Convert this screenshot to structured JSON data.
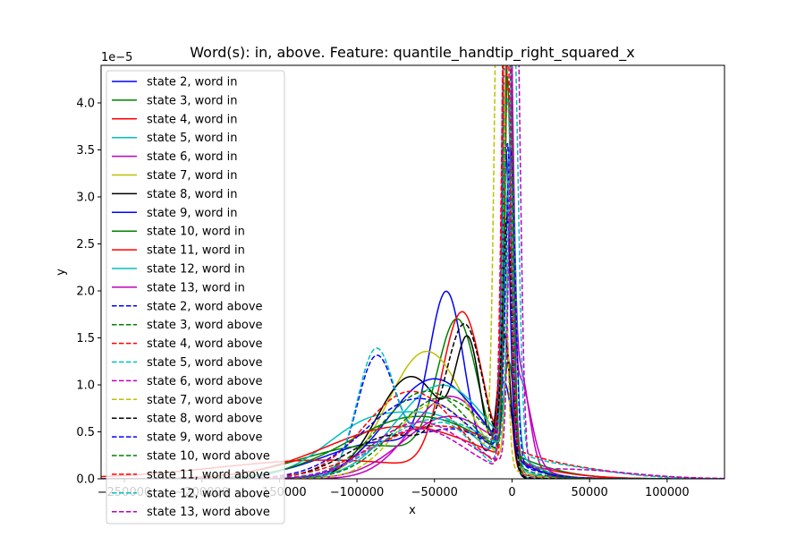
{
  "chart_data": {
    "type": "line",
    "title": "Word(s): in, above. Feature: quantile_handtip_right_squared_x",
    "xlabel": "x",
    "ylabel": "y",
    "y_offset_text": "1e−5",
    "xlim": [
      -265000,
      137000
    ],
    "ylim": [
      0,
      4.4
    ],
    "x_ticks": [
      -250000,
      -200000,
      -150000,
      -100000,
      -50000,
      0,
      50000,
      100000
    ],
    "x_tick_labels": [
      "−250000",
      "−200000",
      "−150000",
      "−100000",
      "−50000",
      "0",
      "50000",
      "100000"
    ],
    "y_ticks": [
      0,
      0.5,
      1.0,
      1.5,
      2.0,
      2.5,
      3.0,
      3.5,
      4.0
    ],
    "y_tick_labels": [
      "0.0",
      "0.5",
      "1.0",
      "1.5",
      "2.0",
      "2.5",
      "3.0",
      "3.5",
      "4.0"
    ],
    "legend_placement": "upper-left",
    "series": [
      {
        "name": "state 2, word in",
        "color": "#0000ff",
        "dash": "solid",
        "components": [
          {
            "m": -42000,
            "s": 11000,
            "a": 0.48
          },
          {
            "m": -5000,
            "s": 5000,
            "a": 0.12
          },
          {
            "m": -80000,
            "s": 40000,
            "a": 0.4
          }
        ]
      },
      {
        "name": "state 3, word in",
        "color": "#008000",
        "dash": "solid",
        "components": [
          {
            "m": -35000,
            "s": 13000,
            "a": 0.5
          },
          {
            "m": -2000,
            "s": 3500,
            "a": 0.1
          },
          {
            "m": -90000,
            "s": 45000,
            "a": 0.4
          }
        ]
      },
      {
        "name": "state 4, word in",
        "color": "#ff0000",
        "dash": "solid",
        "components": [
          {
            "m": -32000,
            "s": 13000,
            "a": 0.55
          },
          {
            "m": -4000,
            "s": 3000,
            "a": 0.1
          },
          {
            "m": -120000,
            "s": 70000,
            "a": 0.35
          }
        ]
      },
      {
        "name": "state 5, word in",
        "color": "#00bfbf",
        "dash": "solid",
        "components": [
          {
            "m": -3000,
            "s": 3500,
            "a": 0.25
          },
          {
            "m": -90000,
            "s": 30000,
            "a": 0.45
          },
          {
            "m": -40000,
            "s": 25000,
            "a": 0.3
          }
        ]
      },
      {
        "name": "state 6, word in",
        "color": "#bf00bf",
        "dash": "solid",
        "components": [
          {
            "m": -2000,
            "s": 2500,
            "a": 0.3
          },
          {
            "m": -40000,
            "s": 25000,
            "a": 0.55
          },
          {
            "m": 5000,
            "s": 6000,
            "a": 0.15
          }
        ]
      },
      {
        "name": "state 7, word in",
        "color": "#bfbf00",
        "dash": "solid",
        "components": [
          {
            "m": -1000,
            "s": 2500,
            "a": 0.15
          },
          {
            "m": -55000,
            "s": 25000,
            "a": 0.85
          }
        ]
      },
      {
        "name": "state 8, word in",
        "color": "#000000",
        "dash": "solid",
        "components": [
          {
            "m": -5000,
            "s": 4000,
            "a": 0.15
          },
          {
            "m": -65000,
            "s": 22000,
            "a": 0.6
          },
          {
            "m": -28000,
            "s": 8000,
            "a": 0.25
          }
        ]
      },
      {
        "name": "state 9, word in",
        "color": "#0000ff",
        "dash": "solid",
        "components": [
          {
            "m": -4000,
            "s": 2500,
            "a": 0.2
          },
          {
            "m": -50000,
            "s": 30000,
            "a": 0.8
          }
        ]
      },
      {
        "name": "state 10, word in",
        "color": "#008000",
        "dash": "solid",
        "components": [
          {
            "m": -3000,
            "s": 2500,
            "a": 0.25
          },
          {
            "m": -60000,
            "s": 45000,
            "a": 0.75
          }
        ]
      },
      {
        "name": "state 11, word in",
        "color": "#ff0000",
        "dash": "solid",
        "components": [
          {
            "m": -2000,
            "s": 2500,
            "a": 0.3
          },
          {
            "m": -70000,
            "s": 50000,
            "a": 0.7
          }
        ]
      },
      {
        "name": "state 12, word in",
        "color": "#00bfbf",
        "dash": "solid",
        "components": [
          {
            "m": -1000,
            "s": 3000,
            "a": 0.25
          },
          {
            "m": -45000,
            "s": 30000,
            "a": 0.75
          }
        ]
      },
      {
        "name": "state 13, word in",
        "color": "#bf00bf",
        "dash": "solid",
        "components": [
          {
            "m": -3000,
            "s": 2500,
            "a": 0.35
          },
          {
            "m": 5000,
            "s": 7000,
            "a": 0.15
          },
          {
            "m": -40000,
            "s": 30000,
            "a": 0.5
          }
        ]
      },
      {
        "name": "state 2, word above",
        "color": "#0000ff",
        "dash": "dashed",
        "components": [
          {
            "m": -88000,
            "s": 12000,
            "a": 0.35
          },
          {
            "m": -3000,
            "s": 3000,
            "a": 0.25
          },
          {
            "m": -40000,
            "s": 30000,
            "a": 0.4
          }
        ]
      },
      {
        "name": "state 3, word above",
        "color": "#008000",
        "dash": "dashed",
        "components": [
          {
            "m": -3000,
            "s": 2500,
            "a": 0.35
          },
          {
            "m": -45000,
            "s": 30000,
            "a": 0.65
          }
        ]
      },
      {
        "name": "state 4, word above",
        "color": "#ff0000",
        "dash": "dashed",
        "components": [
          {
            "m": -2000,
            "s": 2500,
            "a": 0.3
          },
          {
            "m": -65000,
            "s": 30000,
            "a": 0.7
          }
        ]
      },
      {
        "name": "state 5, word above",
        "color": "#00bfbf",
        "dash": "dashed",
        "components": [
          {
            "m": -88000,
            "s": 12000,
            "a": 0.4
          },
          {
            "m": -3000,
            "s": 3000,
            "a": 0.3
          },
          {
            "m": -45000,
            "s": 20000,
            "a": 0.3
          }
        ]
      },
      {
        "name": "state 6, word above",
        "color": "#bf00bf",
        "dash": "dashed",
        "components": [
          {
            "m": -3000,
            "s": 2500,
            "a": 0.6
          },
          {
            "m": -60000,
            "s": 30000,
            "a": 0.4
          }
        ]
      },
      {
        "name": "state 7, word above",
        "color": "#bfbf00",
        "dash": "dashed",
        "components": [
          {
            "m": -8000,
            "s": 3000,
            "a": 0.5
          },
          {
            "m": -50000,
            "s": 25000,
            "a": 0.5
          }
        ]
      },
      {
        "name": "state 8, word above",
        "color": "#000000",
        "dash": "dashed",
        "components": [
          {
            "m": -3000,
            "s": 3000,
            "a": 0.2
          },
          {
            "m": -30000,
            "s": 12000,
            "a": 0.45
          },
          {
            "m": -75000,
            "s": 30000,
            "a": 0.35
          }
        ]
      },
      {
        "name": "state 9, word above",
        "color": "#0000ff",
        "dash": "dashed",
        "components": [
          {
            "m": -1000,
            "s": 3000,
            "a": 0.25
          },
          {
            "m": -60000,
            "s": 35000,
            "a": 0.75
          }
        ]
      },
      {
        "name": "state 10, word above",
        "color": "#008000",
        "dash": "dashed",
        "components": [
          {
            "m": -2000,
            "s": 2500,
            "a": 0.3
          },
          {
            "m": -55000,
            "s": 30000,
            "a": 0.7
          }
        ]
      },
      {
        "name": "state 11, word above",
        "color": "#ff0000",
        "dash": "dashed",
        "components": [
          {
            "m": -4000,
            "s": 2500,
            "a": 0.35
          },
          {
            "m": -50000,
            "s": 40000,
            "a": 0.55
          },
          {
            "m": 30000,
            "s": 40000,
            "a": 0.1
          }
        ]
      },
      {
        "name": "state 12, word above",
        "color": "#00bfbf",
        "dash": "dashed",
        "components": [
          {
            "m": 1000,
            "s": 3000,
            "a": 0.35
          },
          {
            "m": -50000,
            "s": 35000,
            "a": 0.55
          },
          {
            "m": 30000,
            "s": 35000,
            "a": 0.1
          }
        ]
      },
      {
        "name": "state 13, word above",
        "color": "#bf00bf",
        "dash": "dashed",
        "components": [
          {
            "m": 2000,
            "s": 3000,
            "a": 0.45
          },
          {
            "m": -60000,
            "s": 30000,
            "a": 0.45
          },
          {
            "m": 35000,
            "s": 40000,
            "a": 0.1
          }
        ]
      }
    ]
  }
}
